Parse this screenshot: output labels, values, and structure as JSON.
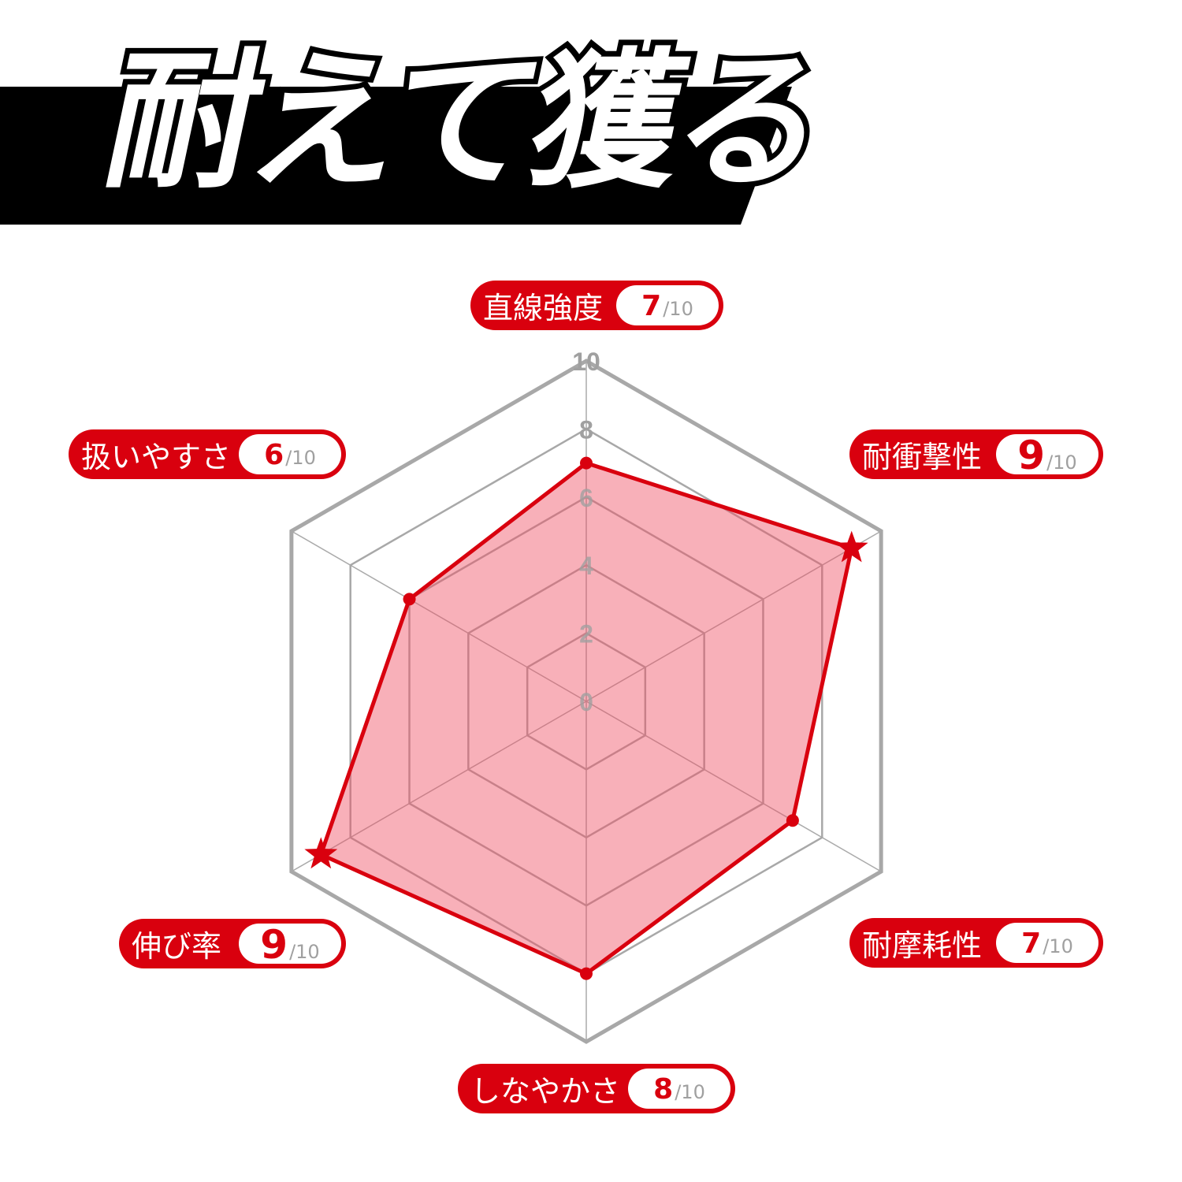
{
  "title": "耐えて獲る",
  "colors": {
    "accent": "#d9000e",
    "grid": "#a8a8a8",
    "fill": "rgba(240,80,100,0.45)",
    "banner": "#000000"
  },
  "chart_data": {
    "type": "radar",
    "categories": [
      "直線強度",
      "耐衝撃性",
      "耐摩耗性",
      "しなやかさ",
      "伸び率",
      "扱いやすさ"
    ],
    "values": [
      7,
      9,
      7,
      8,
      9,
      6
    ],
    "max": 10,
    "score_suffix": "/10",
    "rlim": [
      0,
      10
    ],
    "ticks": [
      "0",
      "2",
      "4",
      "6",
      "8",
      "10"
    ],
    "highlight_markers": "star on values of 9, dot otherwise",
    "grid": true
  }
}
